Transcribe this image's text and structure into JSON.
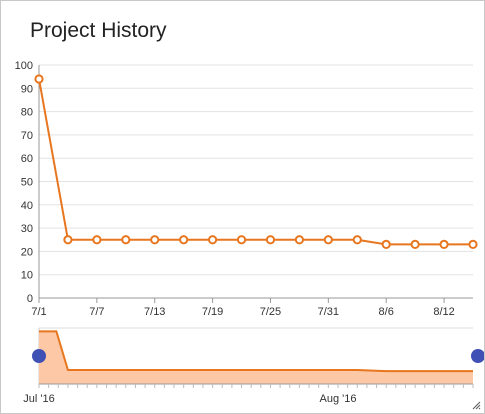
{
  "chart_data": {
    "type": "line",
    "title": "Project History",
    "xlabel": "",
    "ylabel": "",
    "ylim": [
      0,
      100
    ],
    "yticks": [
      "0",
      "10",
      "20",
      "30",
      "40",
      "50",
      "60",
      "70",
      "80",
      "90",
      "100"
    ],
    "x": [
      "7/1",
      "7/2",
      "7/3",
      "7/4",
      "7/5",
      "7/6",
      "7/7",
      "7/8",
      "7/9",
      "7/10",
      "7/11",
      "7/12",
      "7/13",
      "7/14",
      "7/15",
      "7/16",
      "7/17",
      "7/18",
      "7/19",
      "7/20",
      "7/21",
      "7/22",
      "7/23",
      "7/24",
      "7/25",
      "7/26",
      "7/27",
      "7/28",
      "7/29",
      "7/30",
      "7/31",
      "8/1",
      "8/2",
      "8/3",
      "8/4",
      "8/5",
      "8/6",
      "8/7",
      "8/8",
      "8/9",
      "8/10",
      "8/11",
      "8/12",
      "8/13",
      "8/14",
      "8/15"
    ],
    "xtick_labels": [
      "7/1",
      "7/7",
      "7/13",
      "7/19",
      "7/25",
      "7/31",
      "8/6",
      "8/12"
    ],
    "series": [
      {
        "color": "#e8761e",
        "points": [
          {
            "x": "7/1",
            "y": 94
          },
          {
            "x": "7/4",
            "y": 25
          },
          {
            "x": "7/7",
            "y": 25
          },
          {
            "x": "7/10",
            "y": 25
          },
          {
            "x": "7/13",
            "y": 25
          },
          {
            "x": "7/16",
            "y": 25
          },
          {
            "x": "7/19",
            "y": 25
          },
          {
            "x": "7/22",
            "y": 25
          },
          {
            "x": "7/25",
            "y": 25
          },
          {
            "x": "7/28",
            "y": 25
          },
          {
            "x": "7/31",
            "y": 25
          },
          {
            "x": "8/3",
            "y": 25
          },
          {
            "x": "8/6",
            "y": 23
          },
          {
            "x": "8/9",
            "y": 23
          },
          {
            "x": "8/12",
            "y": 23
          },
          {
            "x": "8/15",
            "y": 23
          }
        ]
      }
    ],
    "grid": true,
    "navigator": {
      "labels": [
        "Jul '16",
        "Aug '16"
      ],
      "fill_color": "#fcc8a6",
      "line_color": "#e8761e",
      "handle_color": "#3f51b5"
    }
  }
}
